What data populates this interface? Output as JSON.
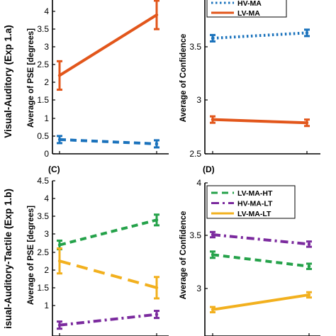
{
  "row_labels": [
    "Visual-Auditory (Exp 1.a)",
    "isual-Auditory-Tactile (Exp 1.b)"
  ],
  "chart_data": [
    {
      "type": "line",
      "ylabel": "Average of PSE [degrees]",
      "ylim": [
        0,
        4.3
      ],
      "yticks": [
        "0",
        "0.5",
        "1",
        "1.5",
        "2",
        "2.5",
        "3",
        "3.5",
        "4"
      ],
      "series": [
        {
          "color": "#E2561B",
          "dash": "solid",
          "values": [
            2.2,
            3.9
          ],
          "errors": [
            0.4,
            0.4
          ]
        },
        {
          "color": "#1A72BC",
          "dash": "dashed",
          "values": [
            0.4,
            0.28
          ],
          "errors": [
            0.1,
            0.1
          ]
        }
      ]
    },
    {
      "type": "line",
      "ylabel": "Average of Confidence",
      "ylim": [
        2.5,
        3.95
      ],
      "yticks": [
        "2.5",
        "3",
        "3.5"
      ],
      "legend": [
        "HV-MA",
        "LV-MA"
      ],
      "series": [
        {
          "name": "HV-MA",
          "color": "#1A72BC",
          "dash": "dotted",
          "values": [
            3.58,
            3.63
          ],
          "errors": [
            0.03,
            0.03
          ]
        },
        {
          "name": "LV-MA",
          "color": "#E2561B",
          "dash": "solid",
          "values": [
            2.82,
            2.79
          ],
          "errors": [
            0.03,
            0.03
          ]
        }
      ]
    },
    {
      "type": "line",
      "panel_label": "(C)",
      "ylabel": "Average of PSE [degrees]",
      "ylim": [
        0.25,
        4.5
      ],
      "yticks": [
        "4.5",
        "4",
        "3.5",
        "3",
        "2.5",
        "2",
        "1.5",
        "1"
      ],
      "series": [
        {
          "color": "#25A24A",
          "dash": "dashed",
          "values": [
            2.7,
            3.4
          ],
          "errors": [
            0.12,
            0.15
          ]
        },
        {
          "color": "#F2B01E",
          "dash": "longdash",
          "values": [
            2.25,
            1.5
          ],
          "errors": [
            0.35,
            0.3
          ]
        },
        {
          "color": "#7B2A9E",
          "dash": "dashdot",
          "values": [
            0.45,
            0.75
          ],
          "errors": [
            0.1,
            0.1
          ]
        }
      ]
    },
    {
      "type": "line",
      "panel_label": "(D)",
      "ylabel": "Average of Confidence",
      "ylim": [
        2.62,
        4.0
      ],
      "yticks": [
        "4",
        "3.5",
        "3"
      ],
      "legend": [
        "LV-MA-HT",
        "HV-MA-LT",
        "LV-MA-LT"
      ],
      "series": [
        {
          "name": "LV-MA-HT",
          "color": "#25A24A",
          "dash": "dashed",
          "values": [
            3.32,
            3.21
          ],
          "errors": [
            0.03,
            0.025
          ]
        },
        {
          "name": "HV-MA-LT",
          "color": "#7B2A9E",
          "dash": "dashdot",
          "values": [
            3.51,
            3.42
          ],
          "errors": [
            0.025,
            0.025
          ]
        },
        {
          "name": "LV-MA-LT",
          "color": "#F2B01E",
          "dash": "solid",
          "values": [
            2.8,
            2.94
          ],
          "errors": [
            0.025,
            0.025
          ]
        }
      ]
    }
  ]
}
